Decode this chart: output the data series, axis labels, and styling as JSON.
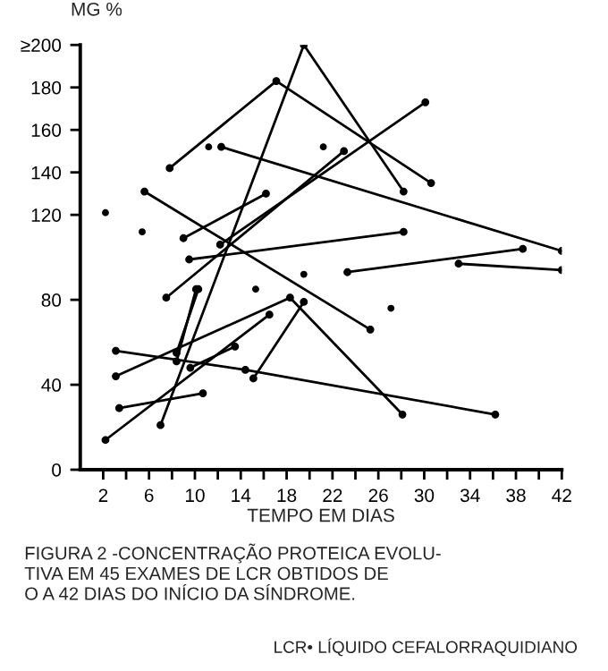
{
  "chart_data": {
    "type": "line",
    "ylabel": "MG %",
    "xlabel": "TEMPO EM DIAS",
    "annotations": [
      "FIGURA 2 -CONCENTRAÇÃO PROTEICA EVOLU-\nTIVA EM 45 EXAMES DE LCR OBTIDOS DE\nO A 42 DIAS DO INÍCIO DA SÍNDROME.",
      "LCR• LÍQUIDO CEFALORRAQUIDIANO"
    ],
    "marker": "circle",
    "grid": false,
    "legend": false,
    "xlim": [
      0,
      42
    ],
    "xticks": [
      2,
      {
        "value": 4,
        "label": null
      },
      6,
      {
        "value": 8,
        "label": null
      },
      10,
      {
        "value": 12,
        "label": null
      },
      14,
      {
        "value": 16,
        "label": null
      },
      18,
      {
        "value": 20,
        "label": null
      },
      22,
      {
        "value": 24,
        "label": null
      },
      26,
      {
        "value": 28,
        "label": null
      },
      30,
      {
        "value": 32,
        "label": null
      },
      34,
      {
        "value": 36,
        "label": null
      },
      38,
      {
        "value": 40,
        "label": null
      },
      42
    ],
    "ylim": [
      0,
      200
    ],
    "yticks": [
      0,
      40,
      80,
      120,
      140,
      160,
      180,
      {
        "value": 200,
        "label": "≥200"
      }
    ],
    "series": [
      {
        "color": "#000000",
        "x": [
          7.0,
          19.5,
          28.2
        ],
        "values": [
          21,
          200,
          131
        ]
      },
      {
        "color": "#000000",
        "x": [
          7.8,
          17.1,
          30.6
        ],
        "values": [
          142,
          183,
          135
        ]
      },
      {
        "color": "#000000",
        "x": [
          12.3,
          42
        ],
        "values": [
          152,
          103
        ]
      },
      {
        "color": "#000000",
        "x": [
          5.6,
          25.3
        ],
        "values": [
          131,
          66
        ]
      },
      {
        "color": "#000000",
        "x": [
          7.5,
          23.0
        ],
        "values": [
          81,
          150
        ]
      },
      {
        "color": "#000000",
        "x": [
          12.2,
          30.1
        ],
        "values": [
          106,
          173
        ]
      },
      {
        "color": "#000000",
        "x": [
          9.0,
          16.2
        ],
        "values": [
          109,
          130
        ]
      },
      {
        "color": "#000000",
        "x": [
          9.5,
          28.2
        ],
        "values": [
          99,
          112
        ]
      },
      {
        "color": "#000000",
        "x": [
          8.4,
          10.3
        ],
        "values": [
          55,
          85
        ]
      },
      {
        "color": "#000000",
        "x": [
          8.4,
          10.1
        ],
        "values": [
          51,
          85
        ]
      },
      {
        "color": "#000000",
        "x": [
          2.2,
          16.5
        ],
        "values": [
          14,
          73
        ]
      },
      {
        "color": "#000000",
        "x": [
          3.1,
          18.3,
          28.1
        ],
        "values": [
          44,
          81,
          26
        ]
      },
      {
        "color": "#000000",
        "x": [
          3.1,
          14.4,
          36.2
        ],
        "values": [
          56,
          47,
          26
        ]
      },
      {
        "color": "#000000",
        "x": [
          3.4,
          10.7
        ],
        "values": [
          29,
          36
        ]
      },
      {
        "color": "#000000",
        "x": [
          9.6,
          13.5
        ],
        "values": [
          48,
          58
        ]
      },
      {
        "color": "#000000",
        "x": [
          15.1,
          19.5
        ],
        "values": [
          43,
          79
        ]
      },
      {
        "color": "#000000",
        "x": [
          23.3,
          38.6
        ],
        "values": [
          93,
          104
        ]
      },
      {
        "color": "#000000",
        "x": [
          33.0,
          42
        ],
        "values": [
          97,
          94
        ]
      },
      {
        "type": "scatter",
        "color": "#000000",
        "x": [
          2.2,
          5.4,
          11.2,
          21.2,
          15.3,
          19.5,
          27.1
        ],
        "values": [
          121,
          112,
          152,
          152,
          85,
          92,
          76
        ]
      }
    ]
  }
}
